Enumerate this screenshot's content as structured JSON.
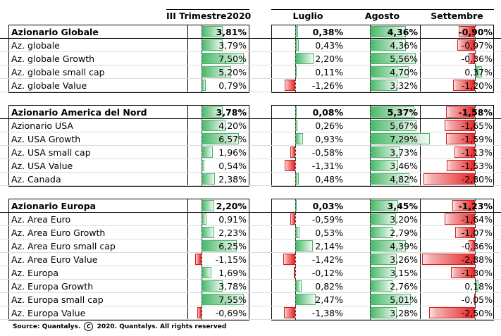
{
  "columns": {
    "q3": "III Trimestre2020",
    "jul": "Luglio",
    "aug": "Agosto",
    "sep": "Settembre"
  },
  "scale": {
    "q3": [
      -2.0,
      8.0
    ],
    "month": [
      -3.5,
      6.0
    ],
    "sep": [
      -3.0,
      1.0
    ]
  },
  "colors": {
    "positive": "#48b968",
    "negative": "#e52727"
  },
  "groups": [
    {
      "title": "Azionario Globale",
      "summary": {
        "q3": 3.81,
        "jul": 0.38,
        "aug": 4.36,
        "sep": -0.9,
        "q3_text": "3,81%",
        "jul_text": "0,38%",
        "aug_text": "4,36%",
        "sep_text": "-0,90%"
      },
      "rows": [
        {
          "label": "Az. globale",
          "q3": 3.79,
          "jul": 0.43,
          "aug": 4.36,
          "sep": -0.97,
          "q3_text": "3,79%",
          "jul_text": "0,43%",
          "aug_text": "4,36%",
          "sep_text": "-0,97%"
        },
        {
          "label": "Az. globale Growth",
          "q3": 7.5,
          "jul": 2.2,
          "aug": 5.56,
          "sep": -0.36,
          "q3_text": "7,50%",
          "jul_text": "2,20%",
          "aug_text": "5,56%",
          "sep_text": "-0,36%"
        },
        {
          "label": "Az. globale small cap",
          "q3": 5.2,
          "jul": 0.11,
          "aug": 4.7,
          "sep": 0.37,
          "q3_text": "5,20%",
          "jul_text": "0,11%",
          "aug_text": "4,70%",
          "sep_text": "0,37%"
        },
        {
          "label": "Az. globale Value",
          "q3": 0.79,
          "jul": -1.26,
          "aug": 3.32,
          "sep": -1.2,
          "q3_text": "0,79%",
          "jul_text": "-1,26%",
          "aug_text": "3,32%",
          "sep_text": "-1,20%"
        }
      ]
    },
    {
      "title": "Azionario America del Nord",
      "summary": {
        "q3": 3.78,
        "jul": 0.08,
        "aug": 5.37,
        "sep": -1.58,
        "q3_text": "3,78%",
        "jul_text": "0,08%",
        "aug_text": "5,37%",
        "sep_text": "-1,58%"
      },
      "rows": [
        {
          "label": "Azionario USA",
          "q3": 4.2,
          "jul": 0.26,
          "aug": 5.67,
          "sep": -1.65,
          "q3_text": "4,20%",
          "jul_text": "0,26%",
          "aug_text": "5,67%",
          "sep_text": "-1,65%"
        },
        {
          "label": "Az. USA Growth",
          "q3": 6.57,
          "jul": 0.93,
          "aug": 7.29,
          "sep": -1.59,
          "q3_text": "6,57%",
          "jul_text": "0,93%",
          "aug_text": "7,29%",
          "sep_text": "-1,59%"
        },
        {
          "label": "Az. USA small cap",
          "q3": 1.96,
          "jul": -0.58,
          "aug": 3.73,
          "sep": -1.13,
          "q3_text": "1,96%",
          "jul_text": "-0,58%",
          "aug_text": "3,73%",
          "sep_text": "-1,13%"
        },
        {
          "label": "Az. USA Value",
          "q3": 0.54,
          "jul": -1.31,
          "aug": 3.46,
          "sep": -1.53,
          "q3_text": "0,54%",
          "jul_text": "-1,31%",
          "aug_text": "3,46%",
          "sep_text": "-1,53%"
        },
        {
          "label": "Az. Canada",
          "q3": 2.38,
          "jul": 0.48,
          "aug": 4.82,
          "sep": -2.8,
          "q3_text": "2,38%",
          "jul_text": "0,48%",
          "aug_text": "4,82%",
          "sep_text": "-2,80%"
        }
      ]
    },
    {
      "title": "Azionario Europa",
      "summary": {
        "q3": 2.2,
        "jul": 0.03,
        "aug": 3.45,
        "sep": -1.23,
        "q3_text": "2,20%",
        "jul_text": "0,03%",
        "aug_text": "3,45%",
        "sep_text": "-1,23%"
      },
      "rows": [
        {
          "label": "Az. Area Euro",
          "q3": 0.91,
          "jul": -0.59,
          "aug": 3.2,
          "sep": -1.64,
          "q3_text": "0,91%",
          "jul_text": "-0,59%",
          "aug_text": "3,20%",
          "sep_text": "-1,64%"
        },
        {
          "label": "Az. Area Euro Growth",
          "q3": 2.23,
          "jul": 0.53,
          "aug": 2.79,
          "sep": -1.07,
          "q3_text": "2,23%",
          "jul_text": "0,53%",
          "aug_text": "2,79%",
          "sep_text": "-1,07%"
        },
        {
          "label": "Az. Area Euro small cap",
          "q3": 6.25,
          "jul": 2.14,
          "aug": 4.39,
          "sep": -0.36,
          "q3_text": "6,25%",
          "jul_text": "2,14%",
          "aug_text": "4,39%",
          "sep_text": "-0,36%"
        },
        {
          "label": "Az. Area Euro Value",
          "q3": -1.15,
          "jul": -1.42,
          "aug": 3.26,
          "sep": -2.88,
          "q3_text": "-1,15%",
          "jul_text": "-1,42%",
          "aug_text": "3,26%",
          "sep_text": "-2,88%"
        },
        {
          "label": "Az. Europa",
          "q3": 1.69,
          "jul": -0.12,
          "aug": 3.15,
          "sep": -1.3,
          "q3_text": "1,69%",
          "jul_text": "-0,12%",
          "aug_text": "3,15%",
          "sep_text": "-1,30%"
        },
        {
          "label": "Az. Europa Growth",
          "q3": 3.78,
          "jul": 0.82,
          "aug": 2.76,
          "sep": 0.18,
          "q3_text": "3,78%",
          "jul_text": "0,82%",
          "aug_text": "2,76%",
          "sep_text": "0,18%"
        },
        {
          "label": "Az. Europa small cap",
          "q3": 7.55,
          "jul": 2.47,
          "aug": 5.01,
          "sep": -0.05,
          "q3_text": "7,55%",
          "jul_text": "2,47%",
          "aug_text": "5,01%",
          "sep_text": "-0,05%"
        },
        {
          "label": "Az. Europa Value",
          "q3": -0.69,
          "jul": -1.38,
          "aug": 3.28,
          "sep": -2.5,
          "q3_text": "-0,69%",
          "jul_text": "-1,38%",
          "aug_text": "3,28%",
          "sep_text": "-2,50%"
        }
      ]
    }
  ],
  "footer": {
    "source": "Source: Quantalys.",
    "copyright_symbol": "C",
    "rights": "2020. Quantalys. All rights reserved"
  }
}
